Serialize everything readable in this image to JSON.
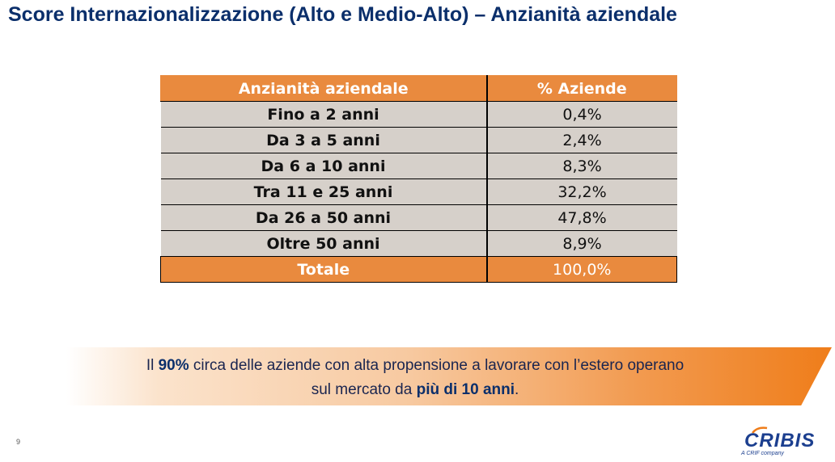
{
  "title": "Score Internazionalizzazione (Alto e Medio-Alto) – Anzianità aziendale",
  "table": {
    "headers": [
      "Anzianità aziendale",
      "% Aziende"
    ],
    "rows": [
      {
        "label": "Fino a 2 anni",
        "value": "0,4%"
      },
      {
        "label": "Da 3 a 5 anni",
        "value": "2,4%"
      },
      {
        "label": "Da 6 a 10 anni",
        "value": "8,3%"
      },
      {
        "label": "Tra 11 e 25 anni",
        "value": "32,2%"
      },
      {
        "label": "Da 26 a 50 anni",
        "value": "47,8%"
      },
      {
        "label": "Oltre 50 anni",
        "value": "8,9%"
      }
    ],
    "total": {
      "label": "Totale",
      "value": "100,0%"
    }
  },
  "banner": {
    "line1_pre": "Il ",
    "line1_bold": "90%",
    "line1_post": " circa delle aziende con alta propensione a lavorare con l’estero operano",
    "line2_pre": "sul mercato da ",
    "line2_bold": "più di 10 anni",
    "line2_post": "."
  },
  "page_number": "9",
  "logo": {
    "name": "CRIBIS",
    "tagline": "A CRIF company"
  },
  "colors": {
    "title": "#0b2f6b",
    "header_orange": "#e98a3e",
    "row_grey": "#d6d0ca",
    "banner_orange": "#ef7d1a"
  }
}
